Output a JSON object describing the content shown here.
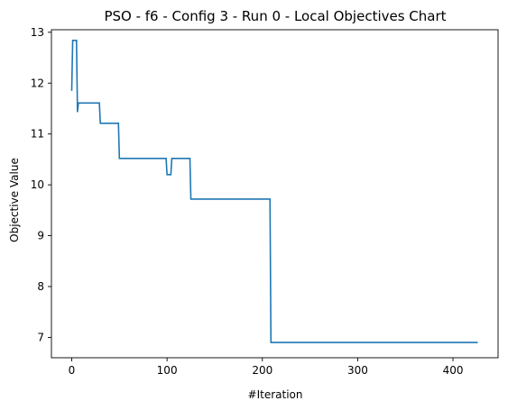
{
  "chart_data": {
    "type": "line",
    "title": "PSO - f6 - Config 3 - Run 0 - Local Objectives Chart",
    "xlabel": "#Iteration",
    "ylabel": "Objective Value",
    "xlim": [
      -21.3,
      447.3
    ],
    "ylim": [
      6.6,
      13.05
    ],
    "xticks": [
      0,
      100,
      200,
      300,
      400
    ],
    "yticks": [
      7,
      8,
      9,
      10,
      11,
      12,
      13
    ],
    "grid": false,
    "legend": "none",
    "line_color": "#1f77b4",
    "series": [
      {
        "x": [
          0,
          1,
          2,
          3,
          4,
          5,
          6,
          7,
          8,
          9,
          10,
          29,
          30,
          49,
          50,
          99,
          100,
          104,
          105,
          124,
          125,
          208,
          209,
          426
        ],
        "y": [
          11.85,
          12.84,
          12.84,
          12.84,
          12.84,
          12.84,
          11.43,
          11.61,
          11.61,
          11.61,
          11.61,
          11.61,
          11.21,
          11.21,
          10.52,
          10.52,
          10.2,
          10.2,
          10.52,
          10.52,
          9.72,
          9.72,
          6.9,
          6.9
        ]
      }
    ]
  }
}
